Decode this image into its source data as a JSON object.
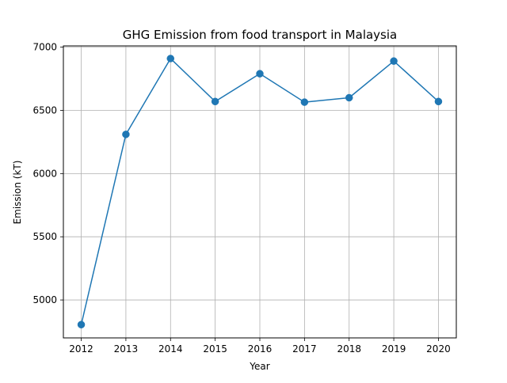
{
  "chart_data": {
    "type": "line",
    "title": "GHG Emission from food transport in Malaysia",
    "xlabel": "Year",
    "ylabel": "Emission (kT)",
    "x": [
      2012,
      2013,
      2014,
      2015,
      2016,
      2017,
      2018,
      2019,
      2020
    ],
    "series": [
      {
        "values": [
          4805,
          6310,
          6910,
          6570,
          6790,
          6565,
          6600,
          6890,
          6570
        ],
        "color": "#1f77b4",
        "marker": "circle"
      }
    ],
    "xticks": [
      "2012",
      "2013",
      "2014",
      "2015",
      "2016",
      "2017",
      "2018",
      "2019",
      "2020"
    ],
    "yticks": [
      "5000",
      "5500",
      "6000",
      "6500",
      "7000"
    ],
    "xlim": [
      2011.6,
      2020.4
    ],
    "ylim": [
      4700,
      7010
    ],
    "grid": true
  }
}
